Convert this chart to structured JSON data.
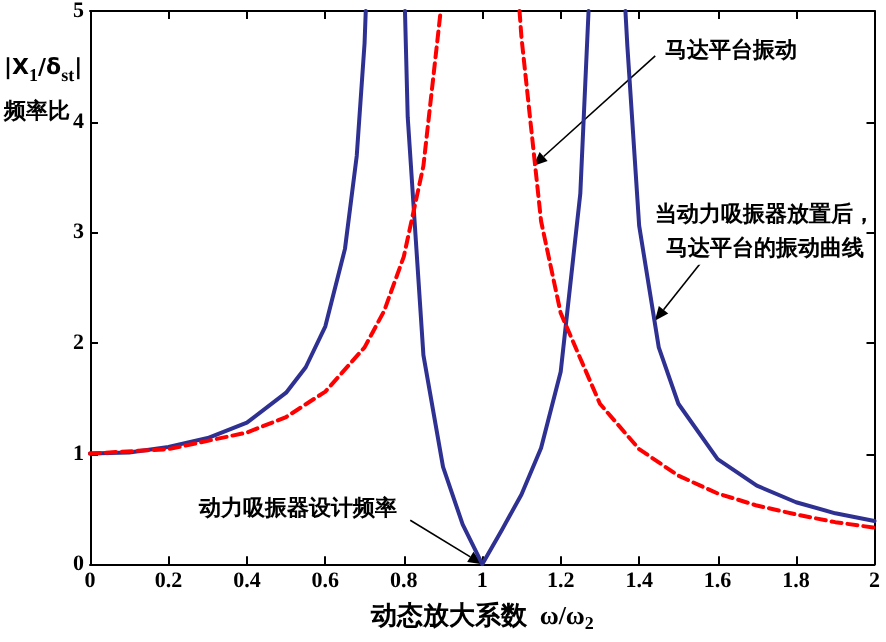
{
  "chart_data": {
    "type": "line",
    "xlabel": "动态放大系数  ω/ω$_{2}$",
    "ylabel": "|X$_{1}$/δ$_{st}$|\n频率比",
    "xlim": [
      0,
      2
    ],
    "xticks": [
      0,
      0.2,
      0.4,
      0.6,
      0.8,
      1,
      1.2,
      1.4,
      1.6,
      1.8,
      2
    ],
    "ylim": [
      0,
      5
    ],
    "yticks": [
      0,
      1,
      2,
      3,
      4,
      5
    ],
    "series": [
      {
        "color": "#2e3192",
        "line_style": "solid",
        "x": [
          0,
          0.1,
          0.2,
          0.3,
          0.4,
          0.5,
          0.55,
          0.6,
          0.65,
          0.68,
          0.7,
          0.703,
          0.75,
          0.803,
          0.81,
          0.85,
          0.9,
          0.95,
          1,
          1.05,
          1.1,
          1.15,
          1.2,
          1.25,
          1.271,
          1.32,
          1.365,
          1.37,
          1.4,
          1.45,
          1.5,
          1.6,
          1.7,
          1.8,
          1.9,
          2
        ],
        "values": [
          1,
          1.01,
          1.06,
          1.14,
          1.28,
          1.55,
          1.78,
          2.15,
          2.85,
          3.69,
          4.71,
          5,
          null,
          5,
          4.04,
          1.89,
          0.88,
          0.36,
          0,
          0.31,
          0.63,
          1.05,
          1.74,
          3.35,
          5,
          null,
          5,
          4.68,
          3.06,
          1.96,
          1.45,
          0.95,
          0.71,
          0.56,
          0.46,
          0.39
        ]
      },
      {
        "color": "#ff0000",
        "line_style": "dashed",
        "x": [
          0,
          0.2,
          0.4,
          0.5,
          0.6,
          0.7,
          0.75,
          0.8,
          0.85,
          0.894,
          1,
          1.095,
          1.1,
          1.15,
          1.2,
          1.3,
          1.4,
          1.5,
          1.6,
          1.7,
          1.8,
          1.9,
          2
        ],
        "values": [
          1,
          1.04,
          1.19,
          1.33,
          1.56,
          1.96,
          2.29,
          2.78,
          3.6,
          5,
          null,
          5,
          4.76,
          3.1,
          2.27,
          1.45,
          1.04,
          0.8,
          0.64,
          0.53,
          0.45,
          0.38,
          0.33
        ]
      }
    ],
    "annotations": [
      {
        "text": "马达平台振动",
        "x": 1.13,
        "y": 3.6
      },
      {
        "text": "当动力吸振器放置后，马达平台的振动曲线",
        "x": 1.44,
        "y": 2.2
      },
      {
        "text": "动力吸振器设计频率",
        "x": 1,
        "y": 0
      }
    ]
  }
}
